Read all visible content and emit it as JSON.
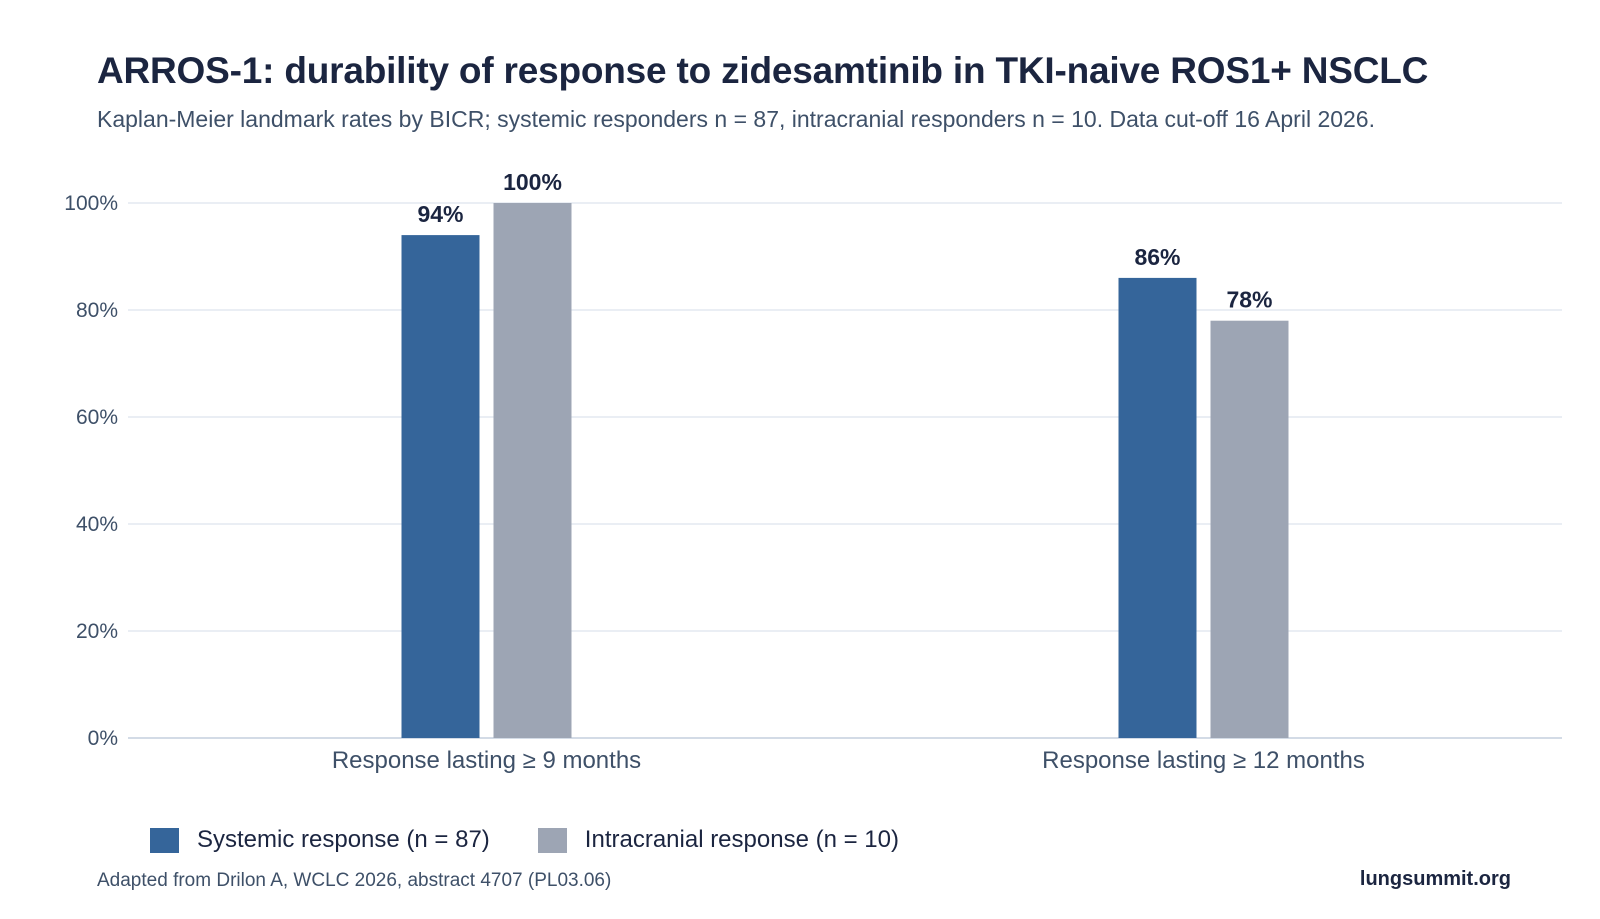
{
  "header": {
    "title": "ARROS-1: durability of response to zidesamtinib in TKI-naive ROS1+ NSCLC",
    "subtitle": "Kaplan-Meier landmark rates by BICR; systemic responders n = 87, intracranial responders n = 10. Data cut-off 16 April 2026."
  },
  "chart_data": {
    "type": "bar",
    "title": "ARROS-1: durability of response to zidesamtinib in TKI-naive ROS1+ NSCLC",
    "subtitle": "Kaplan-Meier landmark rates by BICR; systemic responders n = 87, intracranial responders n = 10. Data cut-off 16 April 2026.",
    "categories": [
      "Response lasting ≥ 9 months",
      "Response lasting ≥ 12 months"
    ],
    "series": [
      {
        "name": "Systemic response (n = 87)",
        "values": [
          94,
          86
        ],
        "color": "#35659a",
        "labels": [
          "94%",
          "86%"
        ]
      },
      {
        "name": "Intracranial response (n = 10)",
        "values": [
          100,
          78
        ],
        "color": "#9da5b4",
        "labels": [
          "100%",
          "78%"
        ]
      }
    ],
    "ylim": [
      0,
      100
    ],
    "yticks": [
      0,
      20,
      40,
      60,
      80,
      100
    ],
    "ytick_labels": [
      "0%",
      "20%",
      "40%",
      "60%",
      "80%",
      "100%"
    ],
    "xlabel": "",
    "ylabel": "",
    "grid": true,
    "legend_position": "bottom-left"
  },
  "footer": {
    "source": "Adapted from Drilon A, WCLC 2026, abstract 4707 (PL03.06)",
    "brand": "lungsummit.org"
  }
}
